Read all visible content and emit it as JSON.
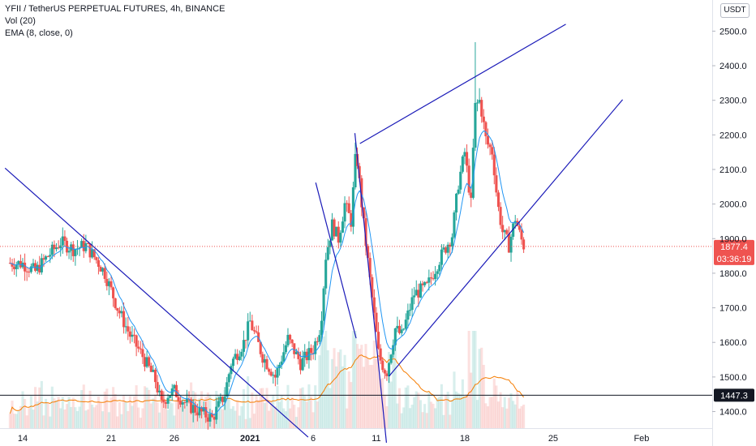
{
  "legend": {
    "symbol": "YFII / TetherUS PERPETUAL FUTURES, 4h, BINANCE",
    "volume": "Vol (20)",
    "ema": "EMA (8, close, 0)"
  },
  "currency": "USDT",
  "colors": {
    "up": "#26a69a",
    "down": "#ef5350",
    "trendline": "#1a1ab8",
    "ema": "#2196f3",
    "vol_ma": "#f57c00",
    "last_price_bg": "#ef5350",
    "level_bg": "#131722"
  },
  "chart_data": {
    "type": "candlestick",
    "y_ticks": [
      "2500.0",
      "2400.0",
      "2300.0",
      "2200.0",
      "2100.0",
      "2000.0",
      "1900.0",
      "1800.0",
      "1700.0",
      "1600.0",
      "1500.0",
      "1400.0"
    ],
    "ylim": [
      1352,
      2590
    ],
    "x_ticks": [
      {
        "label": "14",
        "day": 14
      },
      {
        "label": "21",
        "day": 21
      },
      {
        "label": "26",
        "day": 26
      },
      {
        "label": "2021",
        "day": 32
      },
      {
        "label": "6",
        "day": 37
      },
      {
        "label": "11",
        "day": 42
      },
      {
        "label": "18",
        "day": 49
      },
      {
        "label": "25",
        "day": 56
      },
      {
        "label": "Feb",
        "day": 63
      }
    ],
    "x_note": "days counted from 1 Dec 2020",
    "last_price": "1877.4",
    "countdown": "03:36:19",
    "horizontal_level": "1447.3",
    "trendlines": [
      {
        "from": [
          12.6,
          2104
        ],
        "to": [
          36.6,
          1326
        ]
      },
      {
        "from": [
          40.7,
          2175
        ],
        "to": [
          57.0,
          2520
        ]
      },
      {
        "from": [
          43.0,
          1502
        ],
        "to": [
          61.5,
          2302
        ]
      },
      {
        "from": [
          37.2,
          2062
        ],
        "to": [
          40.4,
          1612
        ]
      },
      {
        "from": [
          40.3,
          2205
        ],
        "to": [
          42.8,
          1310
        ]
      }
    ],
    "anchors": [
      [
        13.0,
        1830
      ],
      [
        14.0,
        1828
      ],
      [
        15.0,
        1805
      ],
      [
        16.0,
        1850
      ],
      [
        17.0,
        1890
      ],
      [
        18.0,
        1870
      ],
      [
        19.0,
        1880
      ],
      [
        20.0,
        1830
      ],
      [
        20.5,
        1800
      ],
      [
        21.5,
        1700
      ],
      [
        22.5,
        1620
      ],
      [
        23.5,
        1560
      ],
      [
        24.5,
        1490
      ],
      [
        25.0,
        1420
      ],
      [
        25.5,
        1450
      ],
      [
        26.0,
        1460
      ],
      [
        27.0,
        1420
      ],
      [
        28.0,
        1400
      ],
      [
        29.0,
        1380
      ],
      [
        30.0,
        1450
      ],
      [
        30.5,
        1540
      ],
      [
        31.5,
        1600
      ],
      [
        32.0,
        1660
      ],
      [
        33.0,
        1560
      ],
      [
        34.0,
        1500
      ],
      [
        35.0,
        1610
      ],
      [
        36.0,
        1540
      ],
      [
        37.0,
        1580
      ],
      [
        37.6,
        1650
      ],
      [
        38.0,
        1850
      ],
      [
        38.5,
        1940
      ],
      [
        39.0,
        1900
      ],
      [
        39.5,
        2000
      ],
      [
        40.0,
        1950
      ],
      [
        40.4,
        2160
      ],
      [
        41.0,
        1940
      ],
      [
        41.5,
        1780
      ],
      [
        42.2,
        1560
      ],
      [
        42.8,
        1510
      ],
      [
        43.5,
        1640
      ],
      [
        44.0,
        1620
      ],
      [
        45.0,
        1740
      ],
      [
        46.0,
        1760
      ],
      [
        47.0,
        1840
      ],
      [
        48.0,
        1910
      ],
      [
        48.5,
        2060
      ],
      [
        49.0,
        2150
      ],
      [
        49.5,
        2000
      ],
      [
        49.8,
        2280
      ],
      [
        50.2,
        2300
      ],
      [
        50.7,
        2180
      ],
      [
        51.2,
        2150
      ],
      [
        51.6,
        2000
      ],
      [
        52.0,
        1920
      ],
      [
        52.5,
        1880
      ],
      [
        53.0,
        1960
      ],
      [
        53.4,
        1905
      ],
      [
        53.7,
        1877
      ]
    ]
  }
}
